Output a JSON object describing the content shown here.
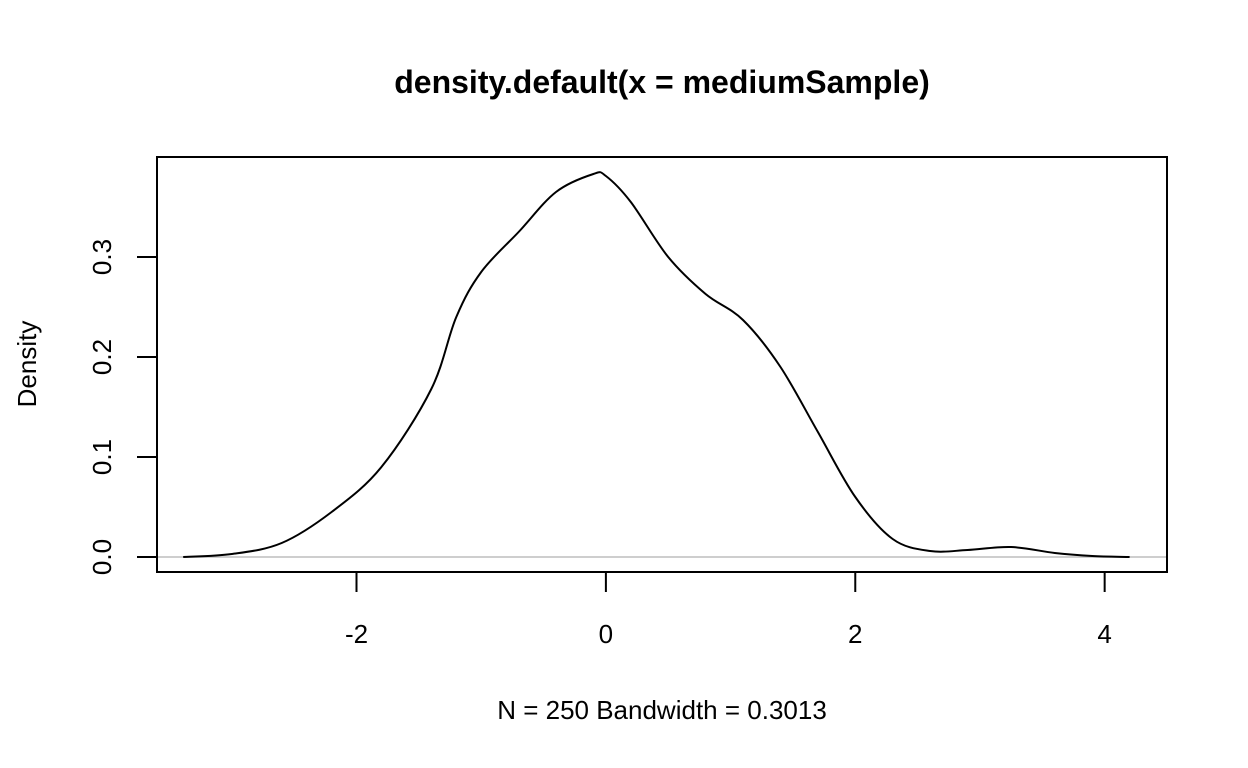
{
  "chart_data": {
    "type": "line",
    "title": "density.default(x = mediumSample)",
    "xlabel": "N = 250   Bandwidth = 0.3013",
    "ylabel": "Density",
    "xlim": [
      -3.6,
      4.5
    ],
    "ylim": [
      -0.015,
      0.4
    ],
    "xticks": [
      -2,
      0,
      2,
      4
    ],
    "xtick_labels": [
      "-2",
      "0",
      "2",
      "4"
    ],
    "yticks": [
      0.0,
      0.1,
      0.2,
      0.3
    ],
    "ytick_labels": [
      "0.0",
      "0.1",
      "0.2",
      "0.3"
    ],
    "grid": false,
    "baseline_y": 0,
    "baseline_color": "#bebebe",
    "line_color": "#000000",
    "series": [
      {
        "x": [
          -3.39,
          -3.0,
          -2.6,
          -2.2,
          -1.8,
          -1.4,
          -1.2,
          -1.0,
          -0.7,
          -0.4,
          -0.1,
          0.0,
          0.2,
          0.5,
          0.8,
          1.1,
          1.4,
          1.7,
          2.0,
          2.3,
          2.6,
          2.9,
          3.25,
          3.6,
          3.9,
          4.2
        ],
        "y": [
          0.0,
          0.003,
          0.014,
          0.045,
          0.09,
          0.168,
          0.24,
          0.285,
          0.325,
          0.365,
          0.383,
          0.381,
          0.355,
          0.3,
          0.263,
          0.237,
          0.19,
          0.125,
          0.06,
          0.018,
          0.006,
          0.007,
          0.01,
          0.004,
          0.001,
          0.0
        ]
      }
    ]
  }
}
